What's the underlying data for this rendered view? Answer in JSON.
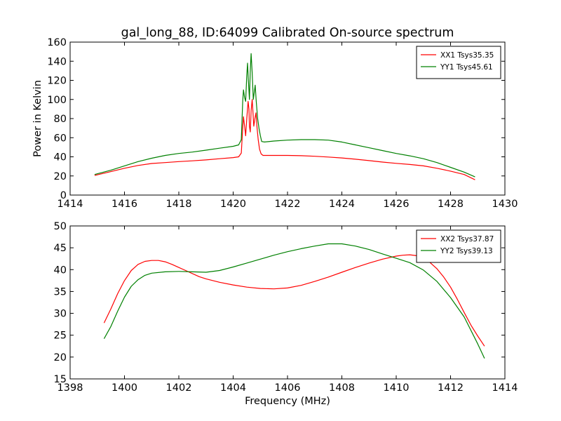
{
  "chart_data": [
    {
      "type": "line",
      "title": "gal_long_88, ID:64099 Calibrated On-source spectrum",
      "xlabel": "",
      "ylabel": "Power in Kelvin",
      "xlim": [
        1414,
        1430
      ],
      "ylim": [
        0,
        160
      ],
      "xticks": [
        1414,
        1416,
        1418,
        1420,
        1422,
        1424,
        1426,
        1428,
        1430
      ],
      "yticks": [
        0,
        20,
        40,
        60,
        80,
        100,
        120,
        140,
        160
      ],
      "grid": false,
      "legend_position": "top-right",
      "series": [
        {
          "name": "XX1 Tsys35.35",
          "color": "#ff0000",
          "points": [
            [
              1414.9,
              20.5
            ],
            [
              1415.5,
              24.5
            ],
            [
              1416.0,
              28
            ],
            [
              1416.5,
              31
            ],
            [
              1417.0,
              33
            ],
            [
              1417.5,
              34
            ],
            [
              1418.0,
              35
            ],
            [
              1418.5,
              35.8
            ],
            [
              1419.0,
              36.8
            ],
            [
              1419.5,
              38
            ],
            [
              1420.0,
              39.2
            ],
            [
              1420.2,
              40
            ],
            [
              1420.3,
              44
            ],
            [
              1420.35,
              70
            ],
            [
              1420.38,
              82
            ],
            [
              1420.42,
              72
            ],
            [
              1420.46,
              62
            ],
            [
              1420.5,
              80
            ],
            [
              1420.55,
              98
            ],
            [
              1420.58,
              90
            ],
            [
              1420.6,
              72
            ],
            [
              1420.63,
              66
            ],
            [
              1420.66,
              88
            ],
            [
              1420.7,
              100
            ],
            [
              1420.73,
              86
            ],
            [
              1420.76,
              72
            ],
            [
              1420.8,
              80
            ],
            [
              1420.84,
              86
            ],
            [
              1420.88,
              70
            ],
            [
              1420.92,
              58
            ],
            [
              1420.97,
              48
            ],
            [
              1421.03,
              43
            ],
            [
              1421.1,
              41.5
            ],
            [
              1421.5,
              41.5
            ],
            [
              1422.0,
              41.5
            ],
            [
              1422.5,
              41.2
            ],
            [
              1423.0,
              40.6
            ],
            [
              1423.5,
              39.8
            ],
            [
              1424.0,
              38.8
            ],
            [
              1424.5,
              37.5
            ],
            [
              1425.0,
              36.0
            ],
            [
              1425.5,
              34.5
            ],
            [
              1426.0,
              33.2
            ],
            [
              1426.5,
              32
            ],
            [
              1427.0,
              30.5
            ],
            [
              1427.5,
              28
            ],
            [
              1428.0,
              25
            ],
            [
              1428.5,
              21.5
            ],
            [
              1428.9,
              16
            ]
          ]
        },
        {
          "name": "YY1 Tsys45.61",
          "color": "#008000",
          "points": [
            [
              1414.9,
              21.5
            ],
            [
              1415.5,
              26
            ],
            [
              1416.0,
              30.5
            ],
            [
              1416.5,
              35
            ],
            [
              1417.0,
              38.5
            ],
            [
              1417.5,
              41.5
            ],
            [
              1418.0,
              43.5
            ],
            [
              1418.5,
              45
            ],
            [
              1419.0,
              47
            ],
            [
              1419.5,
              49
            ],
            [
              1420.0,
              51
            ],
            [
              1420.2,
              52.5
            ],
            [
              1420.3,
              58
            ],
            [
              1420.35,
              98
            ],
            [
              1420.38,
              110
            ],
            [
              1420.42,
              102
            ],
            [
              1420.46,
              98
            ],
            [
              1420.5,
              125
            ],
            [
              1420.53,
              138
            ],
            [
              1420.56,
              120
            ],
            [
              1420.6,
              100
            ],
            [
              1420.63,
              130
            ],
            [
              1420.66,
              148
            ],
            [
              1420.7,
              128
            ],
            [
              1420.74,
              100
            ],
            [
              1420.78,
              108
            ],
            [
              1420.81,
              115
            ],
            [
              1420.85,
              98
            ],
            [
              1420.9,
              80
            ],
            [
              1420.95,
              70
            ],
            [
              1421.0,
              62
            ],
            [
              1421.05,
              56
            ],
            [
              1421.15,
              55.5
            ],
            [
              1421.5,
              56.5
            ],
            [
              1422.0,
              57.5
            ],
            [
              1422.5,
              58
            ],
            [
              1423.0,
              58
            ],
            [
              1423.5,
              57.5
            ],
            [
              1424.0,
              55.5
            ],
            [
              1424.5,
              52.5
            ],
            [
              1425.0,
              49.5
            ],
            [
              1425.5,
              46.5
            ],
            [
              1426.0,
              43.5
            ],
            [
              1426.5,
              41
            ],
            [
              1427.0,
              38
            ],
            [
              1427.5,
              34
            ],
            [
              1428.0,
              29
            ],
            [
              1428.5,
              24
            ],
            [
              1428.9,
              19
            ]
          ]
        }
      ]
    },
    {
      "type": "line",
      "title": "",
      "xlabel": "Frequency (MHz)",
      "ylabel": "",
      "xlim": [
        1398,
        1414
      ],
      "ylim": [
        15,
        50
      ],
      "xticks": [
        1398,
        1400,
        1402,
        1404,
        1406,
        1408,
        1410,
        1412,
        1414
      ],
      "yticks": [
        15,
        20,
        25,
        30,
        35,
        40,
        45,
        50
      ],
      "grid": false,
      "legend_position": "top-right",
      "series": [
        {
          "name": "XX2 Tsys37.87",
          "color": "#ff0000",
          "points": [
            [
              1399.25,
              27.8
            ],
            [
              1399.5,
              31
            ],
            [
              1399.75,
              34.5
            ],
            [
              1400.0,
              37.5
            ],
            [
              1400.25,
              39.8
            ],
            [
              1400.5,
              41.2
            ],
            [
              1400.75,
              41.9
            ],
            [
              1401.0,
              42.1
            ],
            [
              1401.25,
              42.1
            ],
            [
              1401.5,
              41.8
            ],
            [
              1401.75,
              41.2
            ],
            [
              1402.0,
              40.5
            ],
            [
              1402.25,
              39.8
            ],
            [
              1402.5,
              39.1
            ],
            [
              1402.75,
              38.4
            ],
            [
              1403.0,
              37.9
            ],
            [
              1403.5,
              37.1
            ],
            [
              1404.0,
              36.5
            ],
            [
              1404.5,
              36.0
            ],
            [
              1405.0,
              35.7
            ],
            [
              1405.5,
              35.6
            ],
            [
              1406.0,
              35.8
            ],
            [
              1406.5,
              36.4
            ],
            [
              1407.0,
              37.3
            ],
            [
              1407.5,
              38.3
            ],
            [
              1408.0,
              39.4
            ],
            [
              1408.5,
              40.5
            ],
            [
              1409.0,
              41.5
            ],
            [
              1409.5,
              42.4
            ],
            [
              1410.0,
              43.1
            ],
            [
              1410.25,
              43.3
            ],
            [
              1410.5,
              43.4
            ],
            [
              1410.75,
              43.2
            ],
            [
              1411.0,
              42.6
            ],
            [
              1411.25,
              41.6
            ],
            [
              1411.5,
              40.2
            ],
            [
              1411.75,
              38.3
            ],
            [
              1412.0,
              36.0
            ],
            [
              1412.25,
              33.2
            ],
            [
              1412.5,
              30.2
            ],
            [
              1412.75,
              27.3
            ],
            [
              1413.0,
              24.8
            ],
            [
              1413.25,
              22.5
            ]
          ]
        },
        {
          "name": "YY2 Tsys39.13",
          "color": "#008000",
          "points": [
            [
              1399.25,
              24.2
            ],
            [
              1399.5,
              27
            ],
            [
              1399.75,
              30.5
            ],
            [
              1400.0,
              33.7
            ],
            [
              1400.25,
              36.2
            ],
            [
              1400.5,
              37.7
            ],
            [
              1400.75,
              38.7
            ],
            [
              1401.0,
              39.2
            ],
            [
              1401.5,
              39.5
            ],
            [
              1402.0,
              39.6
            ],
            [
              1402.5,
              39.5
            ],
            [
              1403.0,
              39.4
            ],
            [
              1403.5,
              39.8
            ],
            [
              1404.0,
              40.6
            ],
            [
              1404.5,
              41.5
            ],
            [
              1405.0,
              42.4
            ],
            [
              1405.5,
              43.3
            ],
            [
              1406.0,
              44.1
            ],
            [
              1406.5,
              44.8
            ],
            [
              1407.0,
              45.4
            ],
            [
              1407.5,
              45.9
            ],
            [
              1408.0,
              45.9
            ],
            [
              1408.5,
              45.4
            ],
            [
              1409.0,
              44.6
            ],
            [
              1409.5,
              43.6
            ],
            [
              1410.0,
              42.6
            ],
            [
              1410.5,
              41.6
            ],
            [
              1411.0,
              39.9
            ],
            [
              1411.5,
              37.3
            ],
            [
              1412.0,
              33.6
            ],
            [
              1412.5,
              29.2
            ],
            [
              1413.0,
              23.0
            ],
            [
              1413.25,
              19.7
            ]
          ]
        }
      ]
    }
  ]
}
